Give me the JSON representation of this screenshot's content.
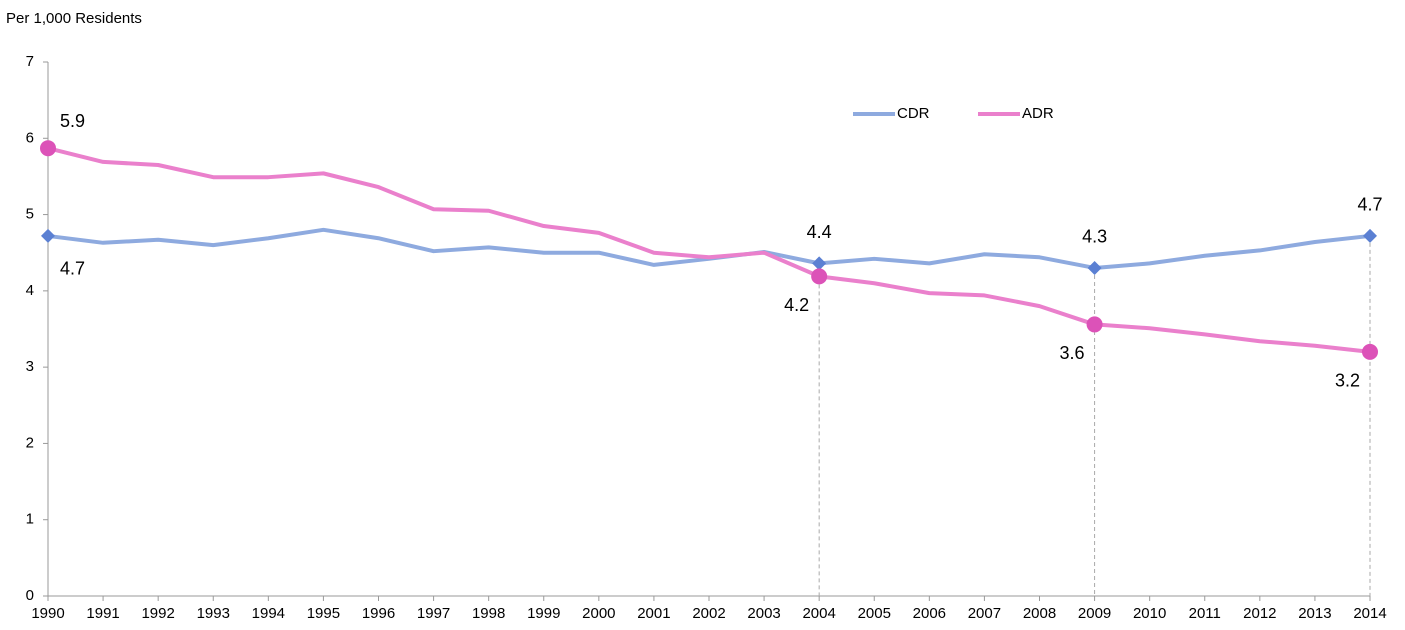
{
  "chart_data": {
    "type": "line",
    "y_label": "Per 1,000 Residents",
    "categories": [
      "1990",
      "1991",
      "1992",
      "1993",
      "1994",
      "1995",
      "1996",
      "1997",
      "1998",
      "1999",
      "2000",
      "2001",
      "2002",
      "2003",
      "2004",
      "2005",
      "2006",
      "2007",
      "2008",
      "2009",
      "2010",
      "2011",
      "2012",
      "2013",
      "2014"
    ],
    "series": [
      {
        "name": "CDR",
        "color": "#8eaadf",
        "marker_color": "#5b80d3",
        "values": [
          4.72,
          4.63,
          4.67,
          4.6,
          4.69,
          4.8,
          4.69,
          4.52,
          4.57,
          4.5,
          4.5,
          4.34,
          4.42,
          4.51,
          4.36,
          4.42,
          4.36,
          4.48,
          4.44,
          4.3,
          4.36,
          4.46,
          4.53,
          4.64,
          4.72
        ],
        "value_labels": [
          "4.7",
          null,
          null,
          null,
          null,
          null,
          null,
          null,
          null,
          null,
          null,
          null,
          null,
          null,
          "4.4",
          null,
          null,
          null,
          null,
          "4.3",
          null,
          null,
          null,
          null,
          "4.7"
        ]
      },
      {
        "name": "ADR",
        "color": "#ea80cc",
        "marker_color": "#dc52b8",
        "values": [
          5.87,
          5.69,
          5.65,
          5.49,
          5.49,
          5.54,
          5.36,
          5.07,
          5.05,
          4.85,
          4.76,
          4.5,
          4.44,
          4.5,
          4.19,
          4.1,
          3.97,
          3.94,
          3.8,
          3.56,
          3.51,
          3.43,
          3.34,
          3.28,
          3.2
        ],
        "value_labels": [
          "5.9",
          null,
          null,
          null,
          null,
          null,
          null,
          null,
          null,
          null,
          null,
          null,
          null,
          null,
          "4.2",
          null,
          null,
          null,
          null,
          "3.6",
          null,
          null,
          null,
          null,
          "3.2"
        ]
      }
    ],
    "ylim": [
      0,
      7
    ],
    "yticks": [
      0,
      1,
      2,
      3,
      4,
      5,
      6,
      7
    ],
    "grid": false
  }
}
